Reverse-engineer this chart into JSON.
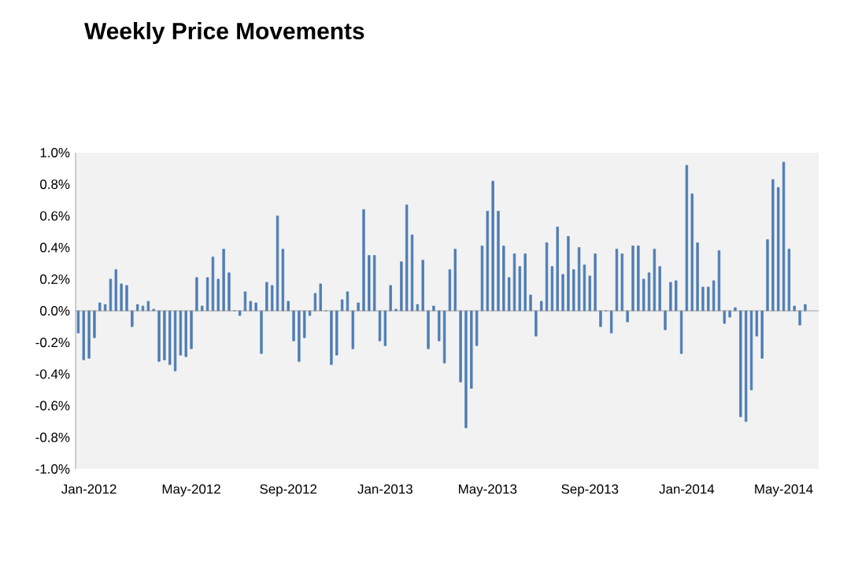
{
  "chart_data": {
    "type": "bar",
    "title": "Weekly Price Movements",
    "categories": [
      null,
      null,
      "Jan-2012",
      null,
      null,
      null,
      null,
      null,
      null,
      null,
      null,
      null,
      null,
      null,
      null,
      null,
      null,
      null,
      null,
      null,
      null,
      "May-2012",
      null,
      null,
      null,
      null,
      null,
      null,
      null,
      null,
      null,
      null,
      null,
      null,
      null,
      null,
      null,
      null,
      null,
      "Sep-2012",
      null,
      null,
      null,
      null,
      null,
      null,
      null,
      null,
      null,
      null,
      null,
      null,
      null,
      null,
      null,
      null,
      null,
      "Jan-2013",
      null,
      null,
      null,
      null,
      null,
      null,
      null,
      null,
      null,
      null,
      null,
      null,
      null,
      null,
      null,
      null,
      null,
      null,
      "May-2013",
      null,
      null,
      null,
      null,
      null,
      null,
      null,
      null,
      null,
      null,
      null,
      null,
      null,
      null,
      null,
      null,
      null,
      null,
      "Sep-2013",
      null,
      null,
      null,
      null,
      null,
      null,
      null,
      null,
      null,
      null,
      null,
      null,
      null,
      null,
      null,
      null,
      null,
      "Jan-2014",
      null,
      null,
      null,
      null,
      null,
      null,
      null,
      null,
      null,
      null,
      null,
      null,
      null,
      null,
      null,
      null,
      null,
      "May-2014",
      null,
      null,
      null,
      null
    ],
    "values": [
      -0.14,
      -0.31,
      -0.3,
      -0.17,
      0.05,
      0.04,
      0.2,
      0.26,
      0.17,
      0.16,
      -0.1,
      0.04,
      0.03,
      0.06,
      0.01,
      -0.32,
      -0.31,
      -0.34,
      -0.38,
      -0.28,
      -0.29,
      -0.24,
      0.21,
      0.03,
      0.21,
      0.34,
      0.2,
      0.39,
      0.24,
      0,
      -0.03,
      0.12,
      0.06,
      0.05,
      -0.27,
      0.18,
      0.16,
      0.6,
      0.39,
      0.06,
      -0.19,
      -0.32,
      -0.17,
      -0.03,
      0.11,
      0.17,
      0,
      -0.34,
      -0.28,
      0.07,
      0.12,
      -0.24,
      0.05,
      0.64,
      0.35,
      0.35,
      -0.19,
      -0.22,
      0.16,
      0.01,
      0.31,
      0.67,
      0.48,
      0.04,
      0.32,
      -0.24,
      0.03,
      -0.19,
      -0.33,
      0.26,
      0.39,
      -0.45,
      -0.74,
      -0.49,
      -0.22,
      0.41,
      0.63,
      0.82,
      0.63,
      0.41,
      0.21,
      0.36,
      0.28,
      0.36,
      0.1,
      -0.16,
      0.06,
      0.43,
      0.28,
      0.53,
      0.23,
      0.47,
      0.26,
      0.4,
      0.29,
      0.22,
      0.36,
      -0.1,
      0,
      -0.14,
      0.39,
      0.36,
      -0.07,
      0.41,
      0.41,
      0.2,
      0.24,
      0.39,
      0.28,
      -0.12,
      0.18,
      0.19,
      -0.27,
      0.92,
      0.74,
      0.43,
      0.15,
      0.15,
      0.19,
      0.38,
      -0.08,
      -0.04,
      0.02,
      -0.67,
      -0.7,
      -0.5,
      -0.16,
      -0.3,
      0.45,
      0.83,
      0.78,
      0.94,
      0.39,
      0.03,
      -0.09,
      0.04
    ],
    "color": "#4f7db5",
    "ylim": [
      -1.0,
      1.0
    ],
    "yticks": [
      {
        "value": -1.0,
        "label": "-1.0%"
      },
      {
        "value": -0.8,
        "label": "-0.8%"
      },
      {
        "value": -0.6,
        "label": "-0.6%"
      },
      {
        "value": -0.4,
        "label": "-0.4%"
      },
      {
        "value": -0.2,
        "label": "-0.2%"
      },
      {
        "value": 0.0,
        "label": "0.0%"
      },
      {
        "value": 0.2,
        "label": "0.2%"
      },
      {
        "value": 0.4,
        "label": "0.4%"
      },
      {
        "value": 0.6,
        "label": "0.6%"
      },
      {
        "value": 0.8,
        "label": "0.8%"
      },
      {
        "value": 1.0,
        "label": "1.0%"
      }
    ]
  }
}
